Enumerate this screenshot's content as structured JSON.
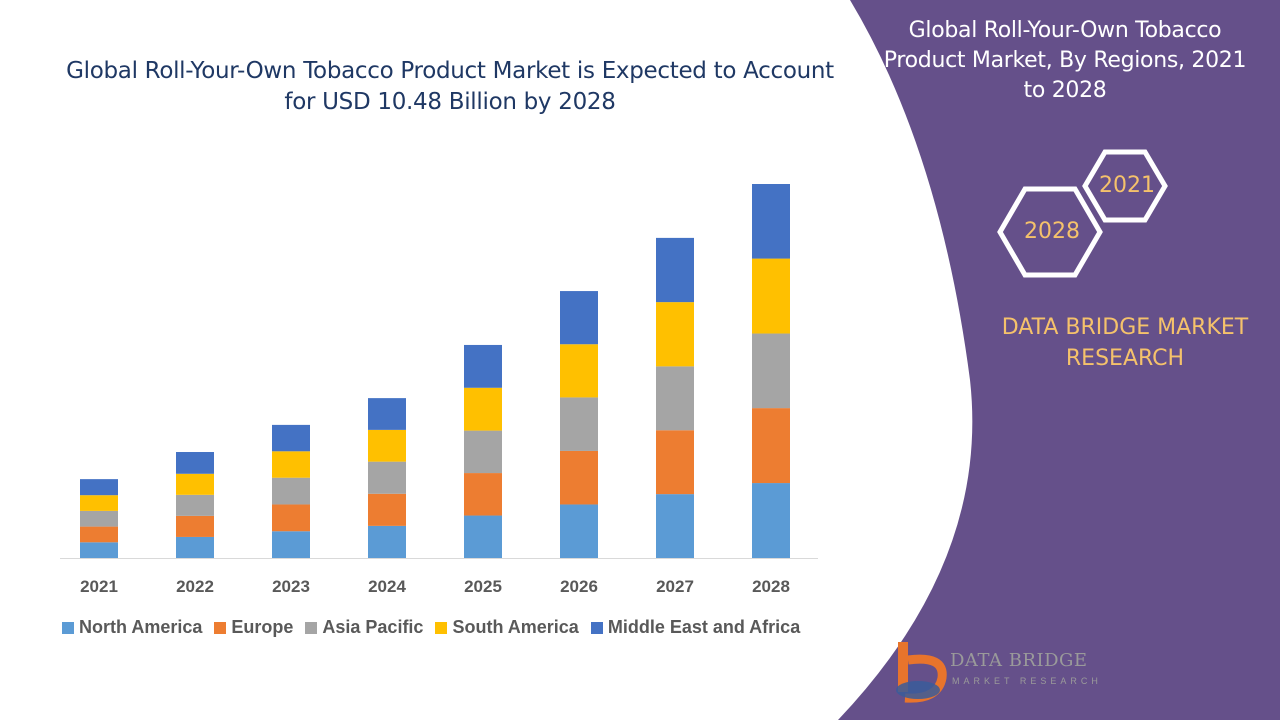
{
  "title": "Global Roll-Your-Own Tobacco Product Market is Expected to Account for USD 10.48 Billion by 2028",
  "side_panel": {
    "title": "Global Roll-Your-Own Tobacco Product Market, By Regions, 2021 to 2028",
    "hex_start": "2021",
    "hex_end": "2028",
    "brand": "DATA BRIDGE MARKET RESEARCH",
    "logo_text": "DATA BRIDGE",
    "logo_sub": "MARKET RESEARCH",
    "panel_color": "#65508a",
    "accent_color": "#f5c26b"
  },
  "chart_data": {
    "type": "bar",
    "stacked": true,
    "categories": [
      "2021",
      "2022",
      "2023",
      "2024",
      "2025",
      "2026",
      "2027",
      "2028"
    ],
    "unit": "USD Billion (estimated)",
    "series": [
      {
        "name": "North America",
        "color": "#5b9bd5",
        "values": [
          0.44,
          0.59,
          0.75,
          0.9,
          1.19,
          1.5,
          1.79,
          2.1
        ]
      },
      {
        "name": "Europe",
        "color": "#ed7d31",
        "values": [
          0.44,
          0.59,
          0.75,
          0.9,
          1.19,
          1.5,
          1.79,
          2.1
        ]
      },
      {
        "name": "Asia Pacific",
        "color": "#a5a5a5",
        "values": [
          0.44,
          0.59,
          0.75,
          0.9,
          1.19,
          1.5,
          1.79,
          2.09
        ]
      },
      {
        "name": "South America",
        "color": "#ffc000",
        "values": [
          0.44,
          0.59,
          0.74,
          0.89,
          1.2,
          1.49,
          1.8,
          2.1
        ]
      },
      {
        "name": "Middle East and Africa",
        "color": "#4472c4",
        "values": [
          0.45,
          0.61,
          0.74,
          0.89,
          1.2,
          1.49,
          1.8,
          2.09
        ]
      }
    ],
    "ylim": [
      0,
      10.48
    ],
    "grid": false,
    "legend_position": "bottom"
  }
}
